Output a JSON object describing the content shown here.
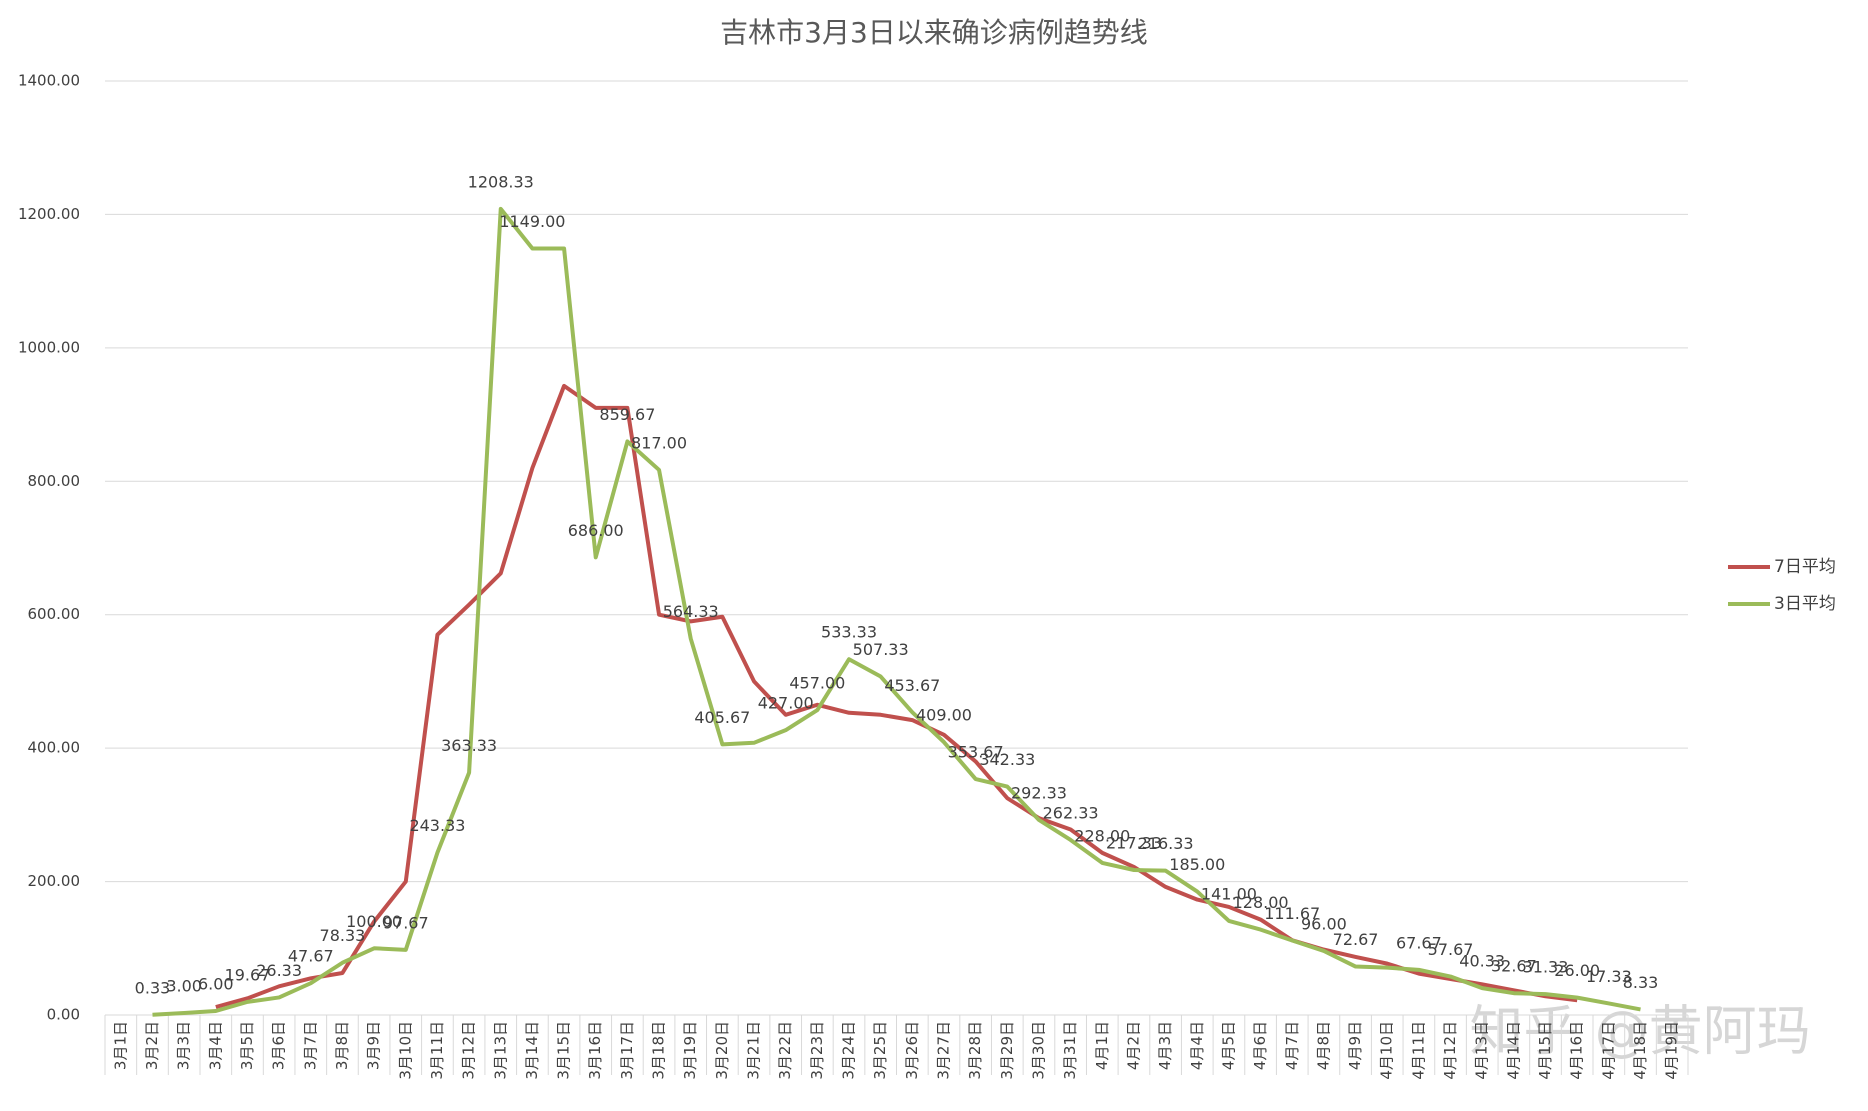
{
  "chart_data": {
    "type": "line",
    "title": "吉林市3月3日以来确诊病例趋势线",
    "categories": [
      "3月1日",
      "3月2日",
      "3月3日",
      "3月4日",
      "3月5日",
      "3月6日",
      "3月7日",
      "3月8日",
      "3月9日",
      "3月10日",
      "3月11日",
      "3月12日",
      "3月13日",
      "3月14日",
      "3月15日",
      "3月16日",
      "3月17日",
      "3月18日",
      "3月19日",
      "3月20日",
      "3月21日",
      "3月22日",
      "3月23日",
      "3月24日",
      "3月25日",
      "3月26日",
      "3月27日",
      "3月28日",
      "3月29日",
      "3月30日",
      "3月31日",
      "4月1日",
      "4月2日",
      "4月3日",
      "4月4日",
      "4月5日",
      "4月6日",
      "4月7日",
      "4月8日",
      "4月9日",
      "4月10日",
      "4月11日",
      "4月12日",
      "4月13日",
      "4月14日",
      "4月15日",
      "4月16日",
      "4月17日",
      "4月18日",
      "4月19日"
    ],
    "series": [
      {
        "name": "7日平均",
        "color": "#c0504d",
        "values": [
          null,
          null,
          null,
          12,
          25,
          43,
          55,
          63,
          140,
          200,
          570,
          615,
          662,
          820,
          943,
          910,
          910,
          600,
          590,
          597,
          500,
          450,
          465,
          453,
          450,
          442,
          420,
          380,
          325,
          295,
          278,
          243,
          222,
          192,
          173,
          162,
          143,
          112,
          98,
          87,
          77,
          62,
          54,
          46,
          37,
          28,
          22,
          null,
          null,
          null
        ]
      },
      {
        "name": "3日平均",
        "color": "#9bbb59",
        "values": [
          null,
          0.33,
          3,
          6,
          19.67,
          26.33,
          47.67,
          78.33,
          100,
          97.67,
          243.33,
          363.33,
          1208.33,
          1149,
          1149,
          686,
          859.67,
          817,
          564.33,
          405.67,
          408,
          427,
          457,
          533.33,
          507.33,
          453.67,
          409,
          353.67,
          342.33,
          292.33,
          262.33,
          228,
          217.33,
          216.33,
          185,
          141,
          128,
          111.67,
          96,
          72.67,
          71,
          67.67,
          57.67,
          40.33,
          32.67,
          31.33,
          26,
          17.33,
          8.33,
          null
        ],
        "value_labels": [
          null,
          "0.33",
          "3.00",
          "6.00",
          "19.67",
          "26.33",
          "47.67",
          "78.33",
          "100.00",
          "97.67",
          "243.33",
          "363.33",
          "1208.33",
          "1149.00",
          null,
          "686.00",
          "859.67",
          "817.00",
          "564.33",
          "405.67",
          null,
          "427.00",
          "457.00",
          "533.33",
          "507.33",
          "453.67",
          "409.00",
          "353.67",
          "342.33",
          "292.33",
          "262.33",
          "228.00",
          "217.33",
          "216.33",
          "185.00",
          "141.00",
          "128.00",
          "111.67",
          "96.00",
          "72.67",
          null,
          "67.67",
          "57.67",
          "40.33",
          "32.67",
          "31.33",
          "26.00",
          "17.33",
          "8.33",
          null
        ]
      }
    ],
    "ylim": [
      0,
      1400
    ],
    "yticks": [
      {
        "value": 0,
        "label": "0.00"
      },
      {
        "value": 200,
        "label": "200.00"
      },
      {
        "value": 400,
        "label": "400.00"
      },
      {
        "value": 600,
        "label": "600.00"
      },
      {
        "value": 800,
        "label": "800.00"
      },
      {
        "value": 1000,
        "label": "1000.00"
      },
      {
        "value": 1200,
        "label": "1200.00"
      },
      {
        "value": 1400,
        "label": "1400.00"
      }
    ],
    "grid": true,
    "legend": "right",
    "watermark": "知乎 @黄阿玛"
  }
}
